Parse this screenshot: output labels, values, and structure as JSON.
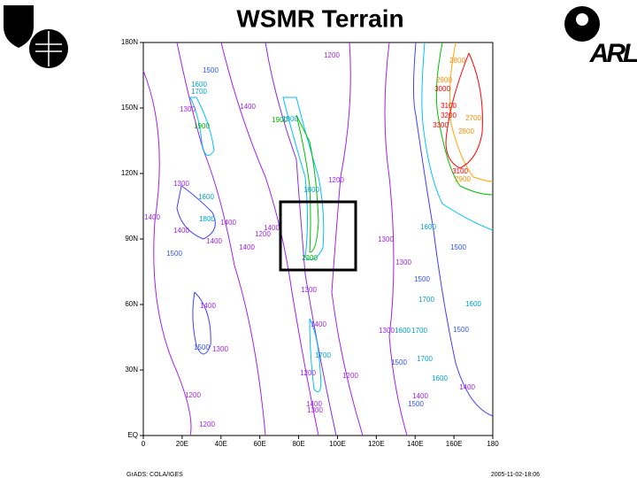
{
  "chart_data": {
    "type": "contour",
    "title": "WSMR Terrain",
    "xlim": [
      0,
      180
    ],
    "ylim": [
      0,
      180
    ],
    "xticks": [
      0,
      {
        "value": 20,
        "label": "20E"
      },
      {
        "value": 40,
        "label": "40E"
      },
      {
        "value": 60,
        "label": "60E"
      },
      {
        "value": 80,
        "label": "80E"
      },
      {
        "value": 100,
        "label": "100E"
      },
      {
        "value": 120,
        "label": "120E"
      },
      {
        "value": 140,
        "label": "140E"
      },
      {
        "value": 160,
        "label": "160E"
      },
      180
    ],
    "yticks": [
      {
        "value": 0,
        "label": "EQ"
      },
      {
        "value": 30,
        "label": "30N"
      },
      {
        "value": 60,
        "label": "60N"
      },
      {
        "value": 90,
        "label": "90N"
      },
      {
        "value": 120,
        "label": "120N"
      },
      {
        "value": 150,
        "label": "150N"
      },
      {
        "value": 180,
        "label": "180N"
      }
    ],
    "contour_labels": [
      1500,
      1200,
      1600,
      1700,
      1300,
      1900,
      1400,
      1900,
      1800,
      2800,
      2900,
      3000,
      3100,
      3200,
      3300,
      2700,
      2800,
      3100,
      2900,
      1200,
      1800,
      1300,
      1600,
      1800,
      1400,
      1400,
      1400,
      1400,
      1200,
      1400,
      1400,
      1500,
      1300,
      1600,
      1500,
      1300,
      1500,
      1700,
      1600,
      1500,
      1300,
      1600,
      1700,
      1700,
      1500,
      1600,
      1400,
      1400,
      1500,
      1400,
      1500,
      1300,
      1400,
      1700,
      1200,
      1200,
      1400,
      1300,
      1200,
      1200,
      2200,
      1300
    ]
  },
  "footer": {
    "left": "GrADS: COLA/IGES",
    "right": "2005-11-02-18:06"
  },
  "logo_text": "ARL"
}
